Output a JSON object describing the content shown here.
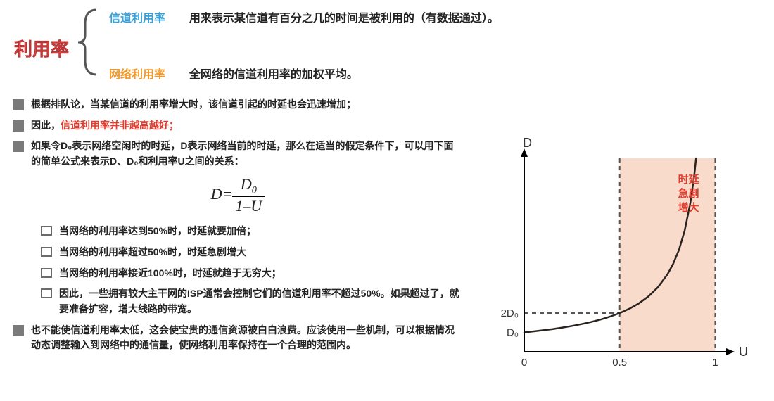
{
  "title": "利用率",
  "branches": {
    "top": {
      "label": "信道利用率",
      "desc": "用来表示某信道有百分之几的时间是被利用的（有数据通过）。"
    },
    "bot": {
      "label": "网络利用率",
      "desc": "全网络的信道利用率的加权平均。"
    }
  },
  "bullets": {
    "b1": "根据排队论，当某信道的利用率增大时，该信道引起的时延也会迅速增加；",
    "b2_prefix": "因此，",
    "b2_red": "信道利用率并非越高越好；",
    "b3": "如果令D₀表示网络空闲时的时延，D表示网络当前的时延，那么在适当的假定条件下，可以用下面的简单公式来表示D、D₀和利用率U之间的关系：",
    "s1": "当网络的利用率达到50%时，时延就要加倍；",
    "s2": "当网络的利用率超过50%时，时延急剧增大",
    "s3": "当网络的利用率接近100%时，时延就趋于无穷大；",
    "s4": "因此，一些拥有较大主干网的ISP通常会控制它们的信道利用率不超过50%。如果超过了，就要准备扩容，增大线路的带宽。",
    "b4": "也不能使信道利用率太低，这会使宝贵的通信资源被白白浪费。应该使用一些机制，可以根据情况动态调整输入到网络中的通信量，使网络利用率保持在一个合理的范围内。"
  },
  "formula": {
    "lhs": "D",
    "eq": "=",
    "num_D": "D",
    "num_sub": "0",
    "den": "1–U"
  },
  "chart": {
    "type": "curve",
    "bg": "#ffffff",
    "axis_color": "#000000",
    "dash_color": "#555555",
    "shade_fill": "#f4c7ae",
    "shade_opacity": 0.65,
    "curve_color": "#2b2320",
    "curve_width": 2.5,
    "text_color": "#333333",
    "callout_color": "#e03c2e",
    "x_label": "U",
    "y_label": "D",
    "x_ticks": [
      {
        "v": 0,
        "label": "0"
      },
      {
        "v": 0.5,
        "label": "0.5"
      },
      {
        "v": 1,
        "label": "1"
      }
    ],
    "y_ticks": [
      {
        "label": "D₀",
        "v": 1
      },
      {
        "label": "2D₀",
        "v": 2
      }
    ],
    "xlim": [
      0,
      1.05
    ],
    "ylim": [
      0,
      10
    ],
    "shade_xrange": [
      0.5,
      1.0
    ],
    "curve_formula": "D = 1/(1-U)",
    "curve_points": [
      [
        0.0,
        1.0
      ],
      [
        0.05,
        1.053
      ],
      [
        0.1,
        1.111
      ],
      [
        0.15,
        1.176
      ],
      [
        0.2,
        1.25
      ],
      [
        0.25,
        1.333
      ],
      [
        0.3,
        1.429
      ],
      [
        0.35,
        1.538
      ],
      [
        0.4,
        1.667
      ],
      [
        0.45,
        1.818
      ],
      [
        0.5,
        2.0
      ],
      [
        0.55,
        2.222
      ],
      [
        0.6,
        2.5
      ],
      [
        0.65,
        2.857
      ],
      [
        0.7,
        3.333
      ],
      [
        0.75,
        4.0
      ],
      [
        0.78,
        4.545
      ],
      [
        0.81,
        5.263
      ],
      [
        0.84,
        6.25
      ],
      [
        0.87,
        7.692
      ],
      [
        0.89,
        9.091
      ],
      [
        0.9,
        10.0
      ]
    ],
    "callout_lines": [
      "时延",
      "急剧",
      "增大"
    ],
    "callout_fontsize": 15
  },
  "colors": {
    "title": "#e95e5e",
    "blue": "#3aa0d8",
    "orange": "#f09a2e",
    "bullet": "#7a7a7a",
    "red": "#e03c2e"
  }
}
